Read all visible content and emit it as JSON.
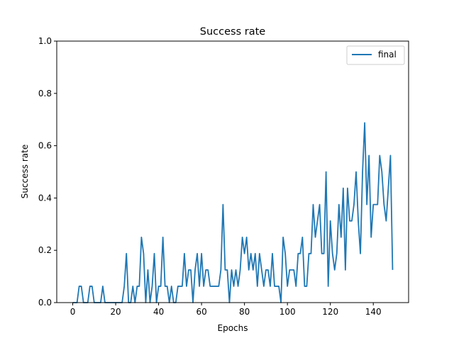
{
  "chart_data": {
    "type": "line",
    "title": "Success rate",
    "xlabel": "Epochs",
    "ylabel": "Success rate",
    "xlim": [
      -7.45,
      156.45
    ],
    "ylim": [
      0.0,
      1.0
    ],
    "xticks": [
      0,
      20,
      40,
      60,
      80,
      100,
      120,
      140
    ],
    "yticks": [
      0.0,
      0.2,
      0.4,
      0.6,
      0.8,
      1.0
    ],
    "xtick_labels": [
      "0",
      "20",
      "40",
      "60",
      "80",
      "100",
      "120",
      "140"
    ],
    "ytick_labels": [
      "0.0",
      "0.2",
      "0.4",
      "0.6",
      "0.8",
      "1.0"
    ],
    "grid": false,
    "legend_position": "top-right",
    "series": [
      {
        "name": "final",
        "color": "#1f77b4",
        "x": [
          0,
          1,
          2,
          3,
          4,
          5,
          6,
          7,
          8,
          9,
          10,
          11,
          12,
          13,
          14,
          15,
          16,
          17,
          18,
          19,
          20,
          21,
          22,
          23,
          24,
          25,
          26,
          27,
          28,
          29,
          30,
          31,
          32,
          33,
          34,
          35,
          36,
          37,
          38,
          39,
          40,
          41,
          42,
          43,
          44,
          45,
          46,
          47,
          48,
          49,
          50,
          51,
          52,
          53,
          54,
          55,
          56,
          57,
          58,
          59,
          60,
          61,
          62,
          63,
          64,
          65,
          66,
          67,
          68,
          69,
          70,
          71,
          72,
          73,
          74,
          75,
          76,
          77,
          78,
          79,
          80,
          81,
          82,
          83,
          84,
          85,
          86,
          87,
          88,
          89,
          90,
          91,
          92,
          93,
          94,
          95,
          96,
          97,
          98,
          99,
          100,
          101,
          102,
          103,
          104,
          105,
          106,
          107,
          108,
          109,
          110,
          111,
          112,
          113,
          114,
          115,
          116,
          117,
          118,
          119,
          120,
          121,
          122,
          123,
          124,
          125,
          126,
          127,
          128,
          129,
          130,
          131,
          132,
          133,
          134,
          135,
          136,
          137,
          138,
          139,
          140,
          141,
          142,
          143,
          144,
          145,
          146,
          147,
          148,
          149
        ],
        "y": [
          0,
          0,
          0,
          0.0625,
          0.0625,
          0,
          0,
          0,
          0.0625,
          0.0625,
          0,
          0,
          0,
          0,
          0.0625,
          0,
          0,
          0,
          0,
          0,
          0,
          0,
          0,
          0,
          0.0625,
          0.1875,
          0,
          0,
          0.0625,
          0,
          0.0625,
          0.0625,
          0.25,
          0.1875,
          0,
          0.125,
          0,
          0.0625,
          0.1875,
          0,
          0.0625,
          0.0625,
          0.25,
          0.0625,
          0.0625,
          0,
          0.0625,
          0,
          0,
          0.0625,
          0.0625,
          0.0625,
          0.1875,
          0.0625,
          0.125,
          0.125,
          0,
          0.125,
          0.1875,
          0.0625,
          0.1875,
          0.0625,
          0.125,
          0.125,
          0.0625,
          0.0625,
          0.0625,
          0.0625,
          0.0625,
          0.125,
          0.375,
          0.125,
          0.125,
          0,
          0.125,
          0.0625,
          0.125,
          0.0625,
          0.125,
          0.25,
          0.1875,
          0.25,
          0.125,
          0.1875,
          0.125,
          0.1875,
          0.0625,
          0.1875,
          0.125,
          0.0625,
          0.125,
          0.125,
          0.0625,
          0.1875,
          0.0625,
          0.0625,
          0.0625,
          0,
          0.25,
          0.1875,
          0.0625,
          0.125,
          0.125,
          0.125,
          0.0625,
          0.1875,
          0.1875,
          0.25,
          0.0625,
          0.0625,
          0.1875,
          0.1875,
          0.375,
          0.25,
          0.3125,
          0.375,
          0.1875,
          0.1875,
          0.5,
          0.0625,
          0.3125,
          0.1875,
          0.125,
          0.1875,
          0.375,
          0.25,
          0.4375,
          0.125,
          0.4375,
          0.3125,
          0.3125,
          0.375,
          0.5,
          0.3125,
          0.1875,
          0.5,
          0.6875,
          0.375,
          0.5625,
          0.25,
          0.375,
          0.375,
          0.375,
          0.5625,
          0.5,
          0.375,
          0.3125,
          0.4375,
          0.5625,
          0.125
        ]
      }
    ]
  }
}
